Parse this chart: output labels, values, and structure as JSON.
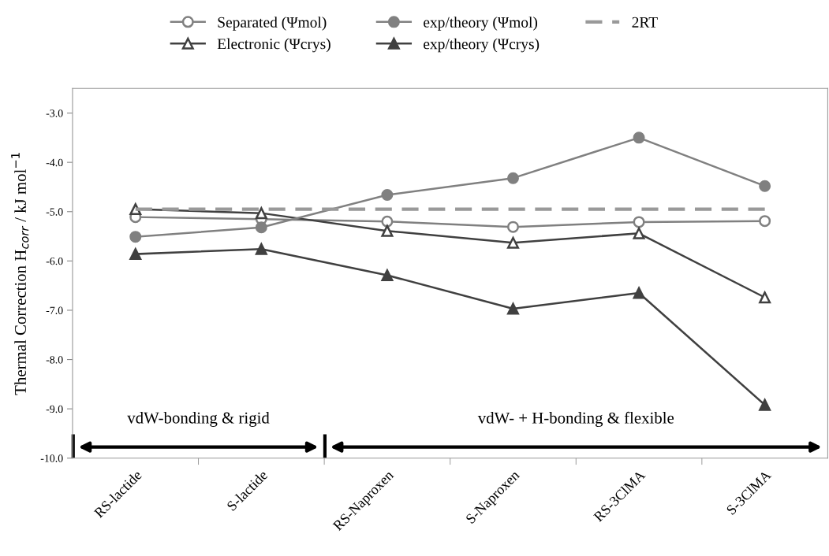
{
  "chart_data": {
    "type": "line",
    "ylabel": "Thermal Correction H$_{corr}$ / kJ mol$^{−1}$",
    "categories": [
      "RS-lactide",
      "S-lactide",
      "RS-Naproxen",
      "S-Naproxen",
      "RS-3ClMA",
      "S-3ClMA"
    ],
    "series": [
      {
        "name": "Separated (Ψmol)",
        "color": "#808080",
        "marker": "circle",
        "values": [
          -5.11,
          -5.15,
          -5.2,
          -5.31,
          -5.21,
          -5.19
        ]
      },
      {
        "name": "Electronic (Ψcrys)",
        "color": "#404040",
        "marker": "triangle",
        "values": [
          -4.95,
          -5.03,
          -5.39,
          -5.63,
          -5.44,
          -6.74
        ]
      },
      {
        "name": "exp/theory (Ψmol)",
        "color": "#808080",
        "marker": "circle",
        "values": [
          -5.51,
          -5.32,
          -4.66,
          -4.32,
          -3.5,
          -4.48
        ]
      },
      {
        "name": "exp/theory (Ψcrys)",
        "color": "#404040",
        "marker": "triangle",
        "values": [
          -5.86,
          -5.76,
          -6.29,
          -6.97,
          -6.65,
          -8.92
        ]
      },
      {
        "name": "2RT",
        "color": "#999999",
        "marker": "none",
        "line_style": "dashed",
        "values": [
          -4.95,
          -4.95,
          -4.95,
          -4.95,
          -4.95,
          -4.95
        ]
      }
    ],
    "ylim": [
      -10.0,
      -2.5
    ],
    "yticks": [
      {
        "value": -10,
        "label": "-10.0"
      },
      {
        "value": -9,
        "label": "-9.0"
      },
      {
        "value": -8,
        "label": "-8.0"
      },
      {
        "value": -7,
        "label": "-7.0"
      },
      {
        "value": -6,
        "label": "-6.0"
      },
      {
        "value": -5,
        "label": "-5.0"
      },
      {
        "value": -4,
        "label": "-4.0"
      },
      {
        "value": -3,
        "label": "-3.0"
      }
    ],
    "annotations": [
      "vdW-bonding & rigid",
      "vdW- + H-bonding & flexible"
    ],
    "grid": false,
    "legend": "top"
  }
}
